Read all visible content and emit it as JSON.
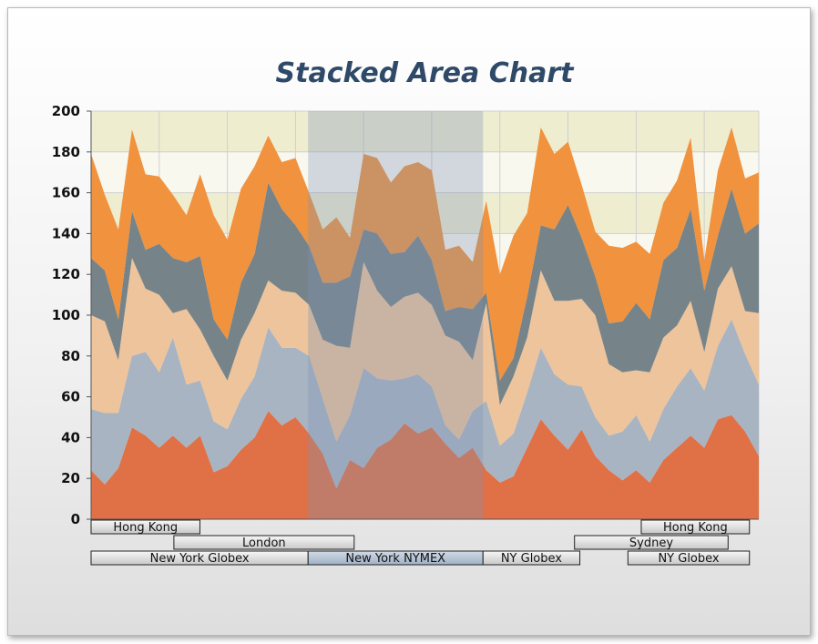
{
  "chart_data": {
    "type": "area",
    "stacked": true,
    "title": "Stacked Area Chart",
    "ylim": [
      0,
      200
    ],
    "y_ticks": [
      "0",
      "20",
      "40",
      "60",
      "80",
      "100",
      "120",
      "140",
      "160",
      "180",
      "200"
    ],
    "x_points": 50,
    "grid": true,
    "series": [
      {
        "color": "#e07046",
        "values": [
          24,
          17,
          25,
          45,
          41,
          35,
          41,
          35,
          41,
          23,
          26,
          34,
          40,
          53,
          46,
          50,
          42,
          32,
          15,
          29,
          25,
          35,
          39,
          47,
          42,
          45,
          37,
          30,
          35,
          24,
          18,
          21,
          35,
          49,
          41,
          34,
          44,
          31,
          24,
          19,
          24,
          18,
          29,
          35,
          41,
          35,
          49,
          51,
          43,
          31
        ]
      },
      {
        "color": "#a8b4c2",
        "values": [
          30,
          35,
          27,
          35,
          41,
          37,
          48,
          31,
          27,
          25,
          18,
          25,
          30,
          41,
          38,
          34,
          38,
          27,
          23,
          22,
          49,
          34,
          29,
          22,
          29,
          20,
          9,
          9,
          18,
          34,
          18,
          21,
          27,
          35,
          30,
          32,
          21,
          19,
          17,
          24,
          27,
          20,
          25,
          30,
          33,
          28,
          36,
          47,
          38,
          35
        ]
      },
      {
        "color": "#eec49c",
        "values": [
          46,
          45,
          26,
          48,
          31,
          38,
          12,
          37,
          25,
          32,
          24,
          29,
          31,
          23,
          28,
          27,
          25,
          29,
          47,
          33,
          52,
          43,
          36,
          40,
          40,
          40,
          44,
          48,
          25,
          48,
          20,
          28,
          27,
          38,
          36,
          41,
          43,
          50,
          35,
          29,
          22,
          34,
          35,
          30,
          33,
          19,
          28,
          26,
          21,
          35
        ]
      },
      {
        "color": "#76848a",
        "values": [
          28,
          25,
          20,
          23,
          19,
          25,
          27,
          23,
          36,
          18,
          20,
          28,
          29,
          48,
          40,
          33,
          29,
          28,
          31,
          35,
          16,
          28,
          26,
          22,
          28,
          22,
          12,
          17,
          25,
          5,
          12,
          9,
          20,
          22,
          35,
          47,
          30,
          19,
          20,
          25,
          33,
          26,
          38,
          38,
          45,
          30,
          26,
          38,
          38,
          44
        ]
      },
      {
        "color": "#f0923e",
        "values": [
          51,
          37,
          44,
          40,
          37,
          33,
          31,
          23,
          40,
          51,
          49,
          46,
          43,
          23,
          23,
          33,
          26,
          26,
          32,
          19,
          37,
          37,
          35,
          42,
          36,
          44,
          30,
          30,
          23,
          45,
          52,
          60,
          41,
          48,
          37,
          31,
          26,
          22,
          38,
          36,
          30,
          32,
          28,
          33,
          35,
          15,
          32,
          30,
          27,
          25
        ]
      }
    ],
    "band_rows": [
      [
        {
          "label": "Hong Kong"
        },
        {
          "label": "Hong Kong"
        }
      ],
      [
        {
          "label": "London"
        },
        {
          "label": "Sydney"
        }
      ],
      [
        {
          "label": "New York Globex"
        },
        {
          "label": "New York NYMEX"
        },
        {
          "label": "NY Globex"
        },
        {
          "label": "NY Globex"
        }
      ]
    ]
  }
}
